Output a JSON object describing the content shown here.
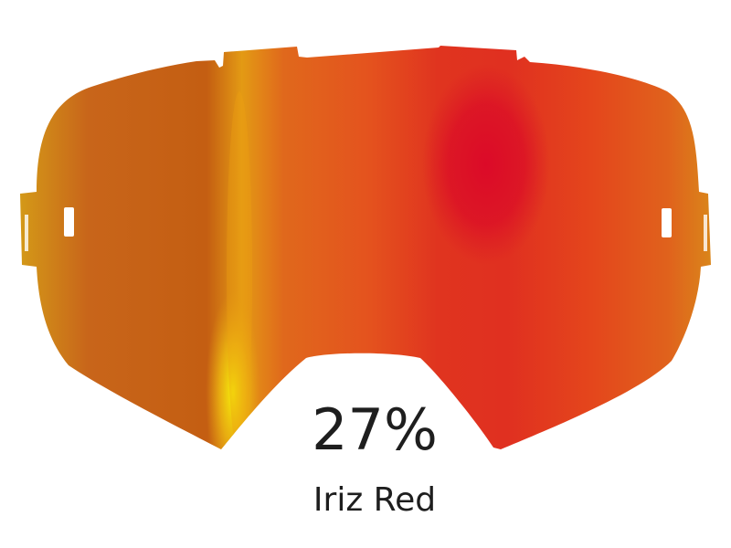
{
  "product": {
    "tint_percent": "27%",
    "lens_name": "Iriz Red",
    "image": "goggle-lens",
    "colors": {
      "edge_left": "#d49a18",
      "amber": "#c65f12",
      "yellow_highlight": "#f2e010",
      "orange": "#e3621e",
      "red_center": "#dc0f28",
      "edge_right": "#d98a1a"
    }
  }
}
